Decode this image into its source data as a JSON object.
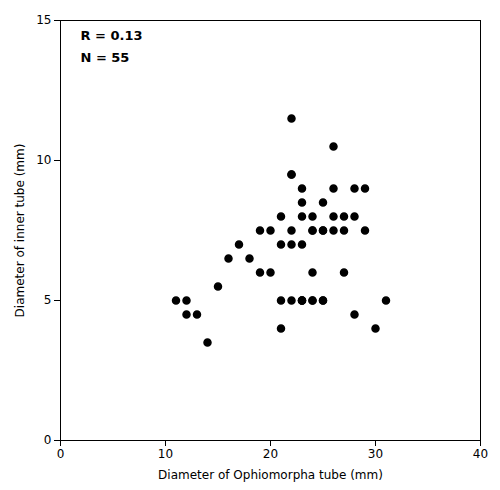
{
  "chart_data": {
    "type": "scatter",
    "x": [
      11,
      12,
      12,
      13,
      14,
      15,
      16,
      17,
      18,
      19,
      19,
      20,
      20,
      21,
      21,
      21,
      21,
      22,
      22,
      22,
      22,
      22,
      22,
      23,
      23,
      23,
      23,
      23,
      23,
      23,
      24,
      24,
      24,
      24,
      24,
      24,
      25,
      25,
      25,
      25,
      25,
      26,
      26,
      26,
      26,
      27,
      27,
      27,
      28,
      28,
      28,
      29,
      29,
      30,
      31
    ],
    "y": [
      5,
      5,
      4.5,
      4.5,
      3.5,
      5.5,
      6.5,
      7,
      6.5,
      7.5,
      6,
      7.5,
      6,
      8,
      7,
      5,
      4,
      11.5,
      9.5,
      9.5,
      7.5,
      7,
      5,
      9,
      8.5,
      8,
      7,
      5,
      5,
      5,
      8,
      7.5,
      7.5,
      6,
      5,
      5,
      8.5,
      7.5,
      7.5,
      5,
      5,
      10.5,
      9,
      8,
      7.5,
      8,
      7.5,
      6,
      9,
      8,
      4.5,
      9,
      7.5,
      4,
      5
    ],
    "xlim": [
      0,
      40
    ],
    "ylim": [
      0,
      15
    ],
    "xticks": [
      0,
      10,
      20,
      30,
      40
    ],
    "yticks": [
      0,
      5,
      10,
      15
    ],
    "xlabel": "Diameter of Ophiomorpha tube (mm)",
    "ylabel": "Diameter of inner tube (mm)",
    "annotations": [
      "R = 0.13",
      "N = 55"
    ],
    "color": "black",
    "grid": false
  }
}
